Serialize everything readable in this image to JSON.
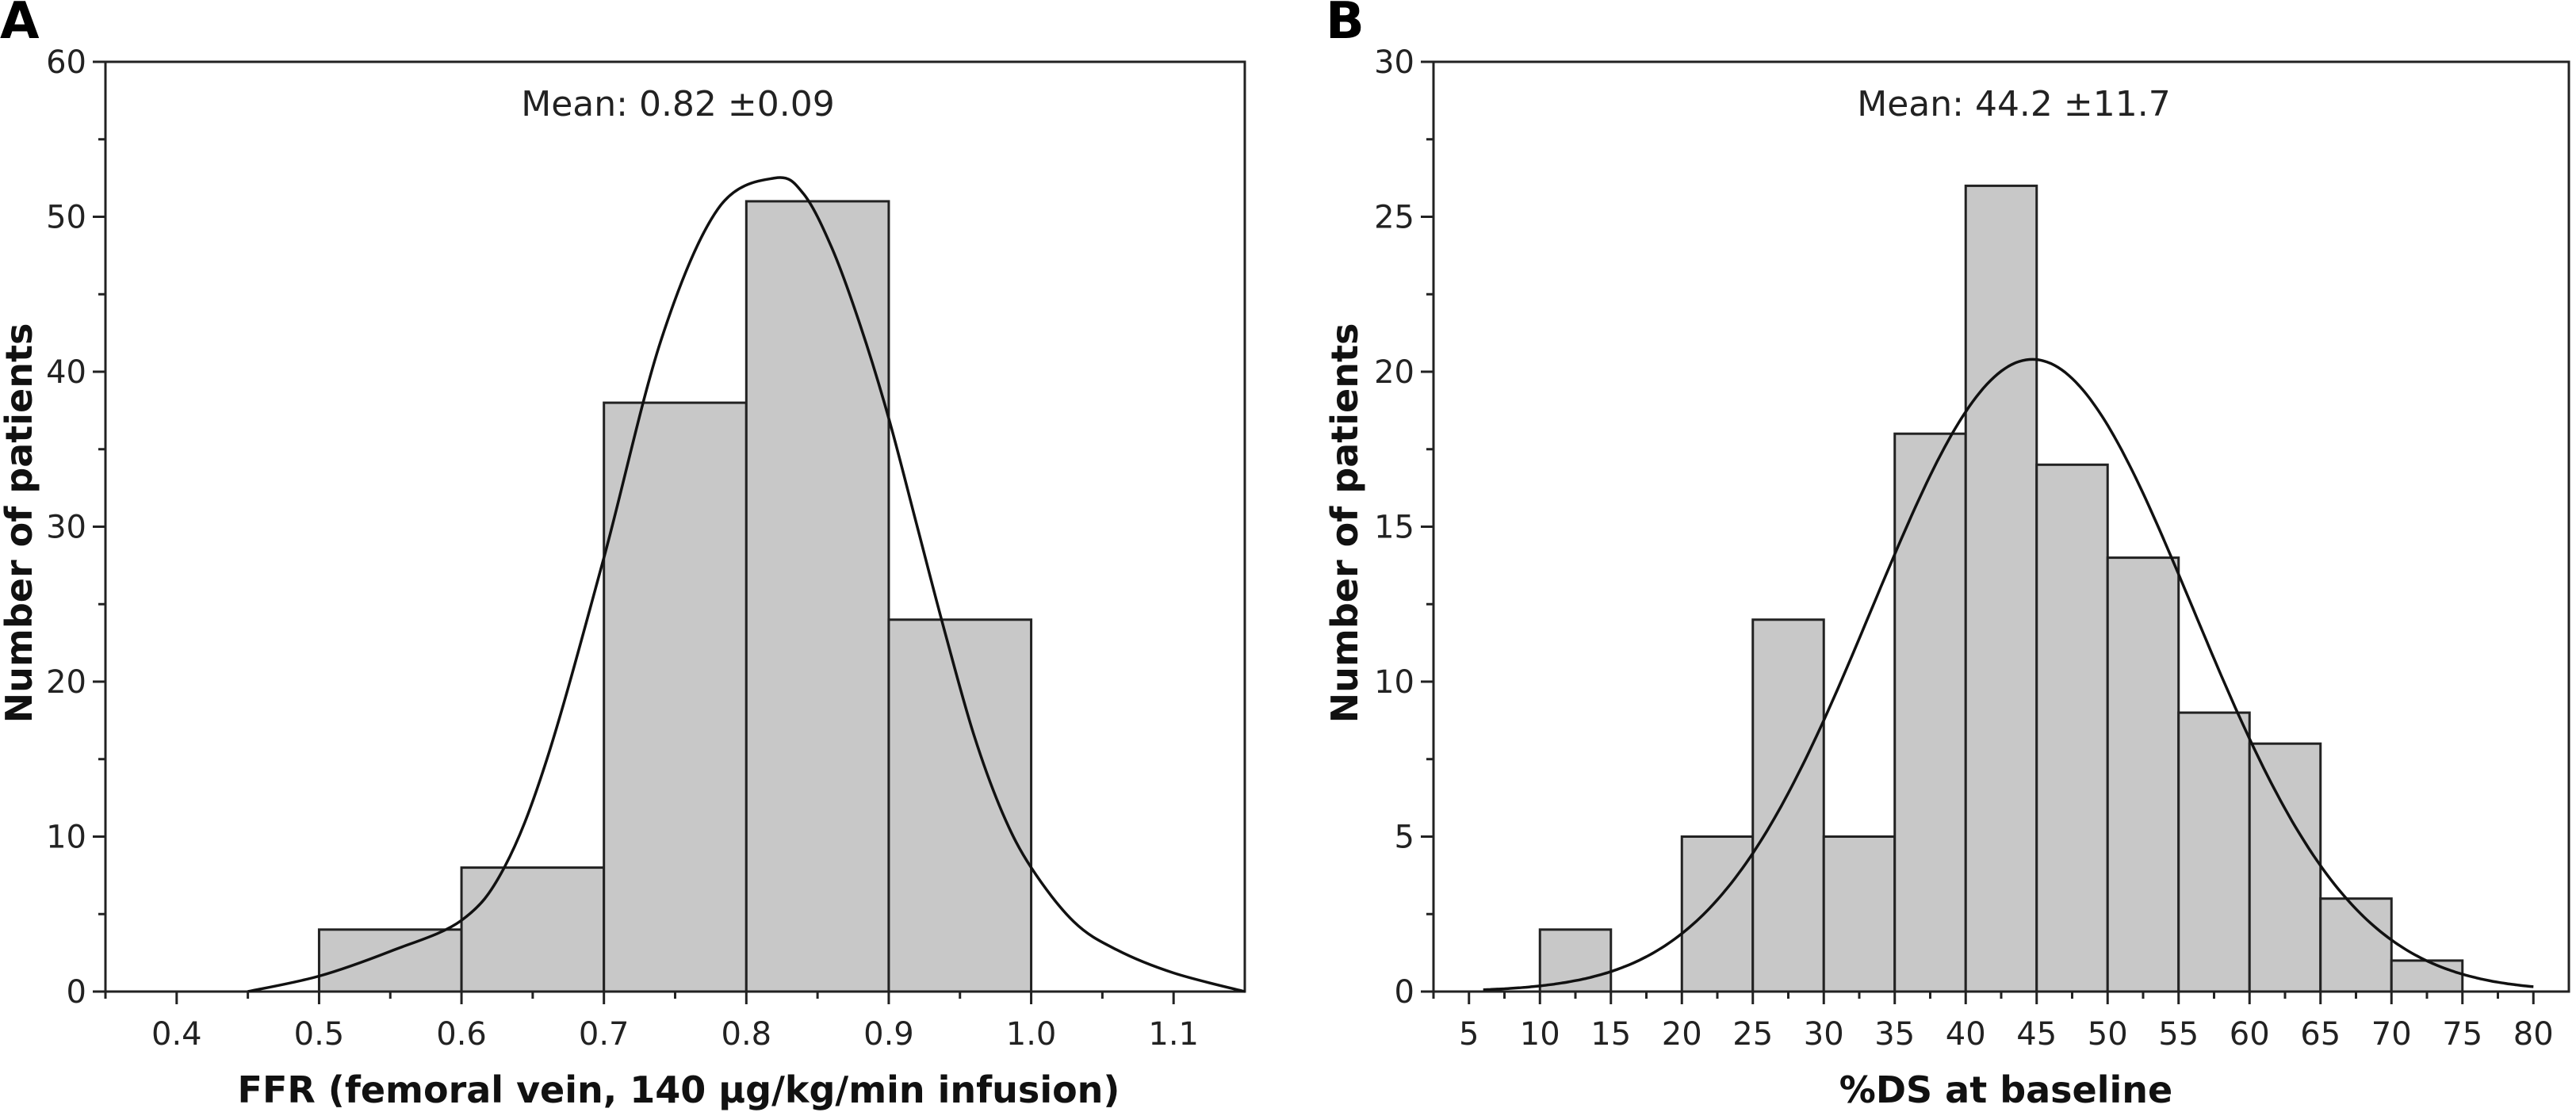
{
  "chart_data": [
    {
      "type": "bar",
      "panel": "A",
      "annotation": "Mean: 0.82 ±0.09",
      "xlabel": "FFR (femoral vein, 140 μg/kg/min infusion)",
      "ylabel": "Number of patients",
      "xlim": [
        0.35,
        1.15
      ],
      "ylim": [
        0,
        60
      ],
      "xticks": [
        0.4,
        0.5,
        0.6,
        0.7,
        0.8,
        0.9,
        1.0,
        1.1
      ],
      "xtick_labels": [
        "0.4",
        "0.5",
        "0.6",
        "0.7",
        "0.8",
        "0.9",
        "1.0",
        "1.1"
      ],
      "yticks": [
        0,
        10,
        20,
        30,
        40,
        50,
        60
      ],
      "ytick_labels": [
        "0",
        "10",
        "20",
        "30",
        "40",
        "50",
        "60"
      ],
      "bins": [
        {
          "start": 0.5,
          "end": 0.6,
          "value": 4
        },
        {
          "start": 0.6,
          "end": 0.7,
          "value": 8
        },
        {
          "start": 0.7,
          "end": 0.8,
          "value": 38
        },
        {
          "start": 0.8,
          "end": 0.9,
          "value": 51
        },
        {
          "start": 0.9,
          "end": 1.0,
          "value": 24
        }
      ],
      "curve": {
        "x": [
          0.45,
          0.5,
          0.55,
          0.6,
          0.63,
          0.66,
          0.7,
          0.74,
          0.78,
          0.82,
          0.84,
          0.86,
          0.88,
          0.9,
          0.92,
          0.94,
          0.96,
          0.98,
          1.0,
          1.03,
          1.06,
          1.1,
          1.15
        ],
        "y": [
          0,
          1,
          2.6,
          4.6,
          8,
          15,
          28,
          42,
          50.5,
          52.5,
          51.5,
          48,
          43,
          37,
          30,
          23,
          16.5,
          11.5,
          8,
          4.5,
          2.7,
          1.2,
          0
        ]
      }
    },
    {
      "type": "bar",
      "panel": "B",
      "annotation": "Mean: 44.2 ±11.7",
      "xlabel": "%DS at baseline",
      "ylabel": "Number of patients",
      "xlim": [
        2.5,
        82.5
      ],
      "ylim": [
        0,
        30
      ],
      "xticks": [
        5,
        10,
        15,
        20,
        25,
        30,
        35,
        40,
        45,
        50,
        55,
        60,
        65,
        70,
        75,
        80
      ],
      "xtick_labels": [
        "5",
        "10",
        "15",
        "20",
        "25",
        "30",
        "35",
        "40",
        "45",
        "50",
        "55",
        "60",
        "65",
        "70",
        "75",
        "80"
      ],
      "yticks": [
        0,
        5,
        10,
        15,
        20,
        25,
        30
      ],
      "ytick_labels": [
        "0",
        "5",
        "10",
        "15",
        "20",
        "25",
        "30"
      ],
      "bins": [
        {
          "start": 10,
          "end": 15,
          "value": 2
        },
        {
          "start": 15,
          "end": 20,
          "value": 0
        },
        {
          "start": 20,
          "end": 25,
          "value": 5
        },
        {
          "start": 25,
          "end": 30,
          "value": 12
        },
        {
          "start": 30,
          "end": 35,
          "value": 5
        },
        {
          "start": 35,
          "end": 40,
          "value": 18
        },
        {
          "start": 40,
          "end": 45,
          "value": 26
        },
        {
          "start": 45,
          "end": 50,
          "value": 17
        },
        {
          "start": 50,
          "end": 55,
          "value": 14
        },
        {
          "start": 55,
          "end": 60,
          "value": 9
        },
        {
          "start": 60,
          "end": 65,
          "value": 8
        },
        {
          "start": 65,
          "end": 70,
          "value": 3
        },
        {
          "start": 70,
          "end": 75,
          "value": 1
        }
      ],
      "curve_params": {
        "mean": 44.7,
        "sd": 11.3,
        "peak": 20.4,
        "x_from": 6,
        "x_to": 80
      }
    }
  ]
}
